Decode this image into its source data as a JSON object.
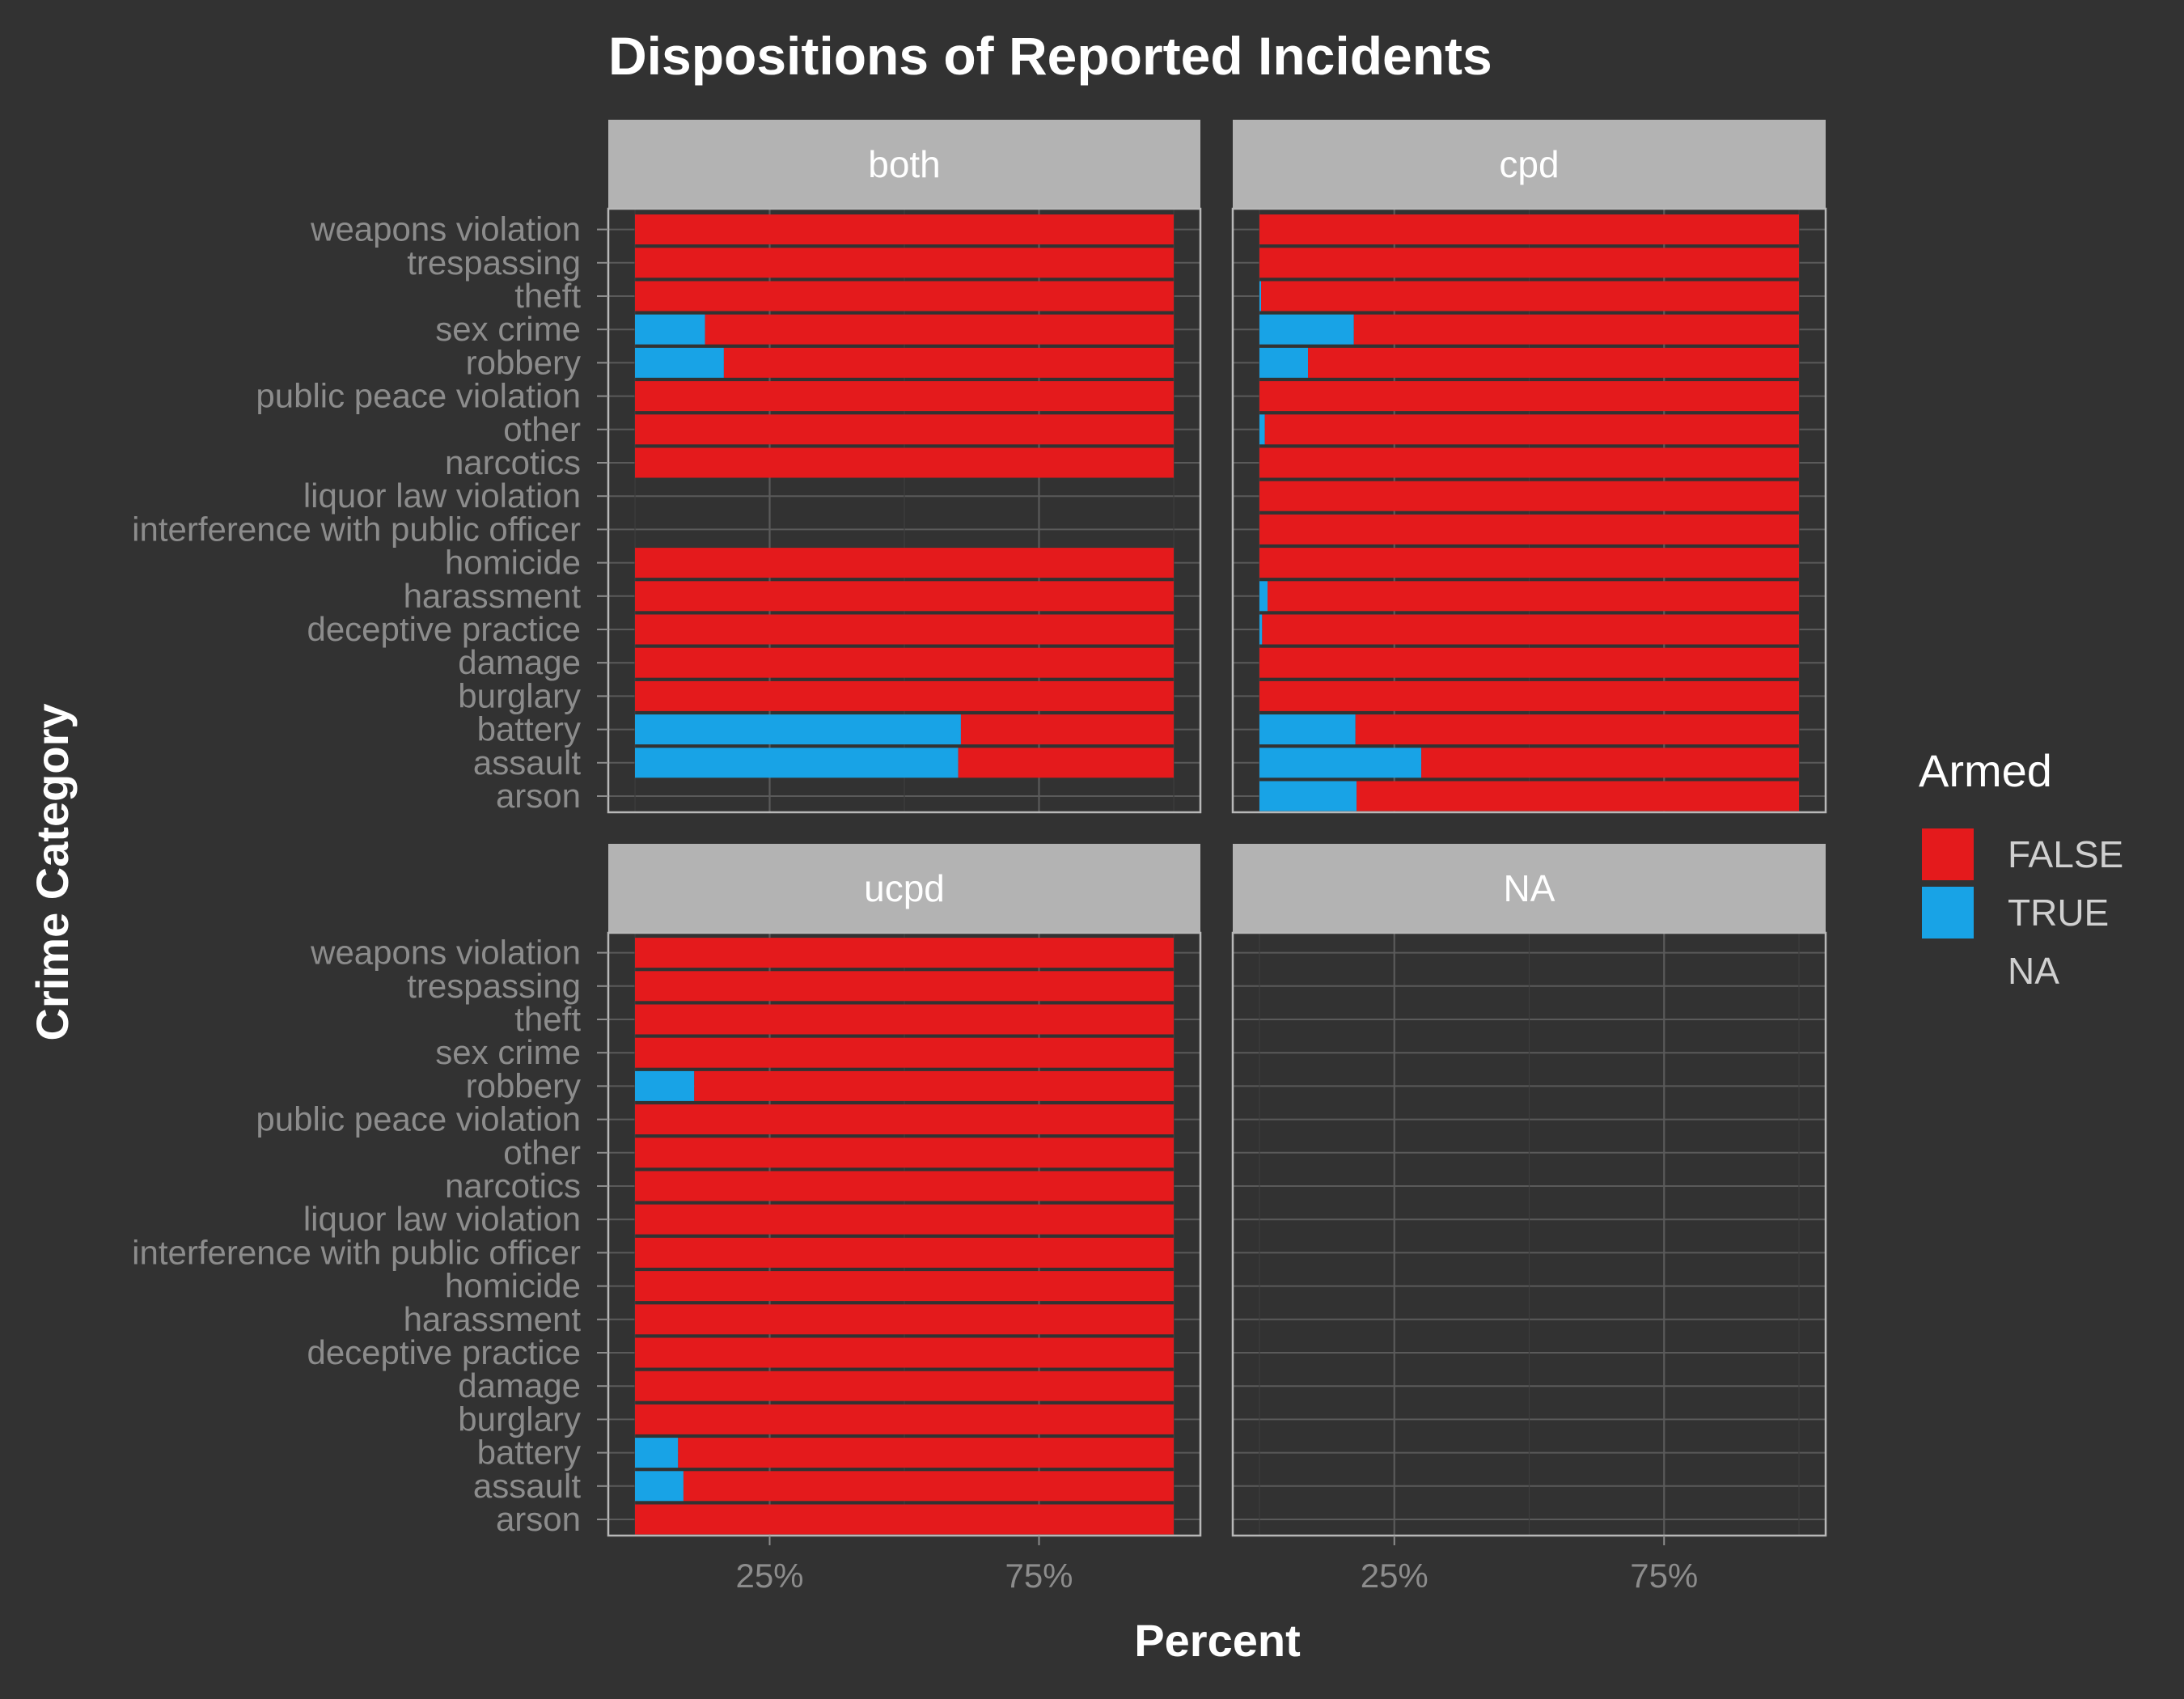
{
  "chart_data": {
    "type": "bar",
    "orientation": "horizontal",
    "stacked": "fill",
    "title": "Dispositions of Reported Incidents",
    "xlabel": "Percent",
    "ylabel": "Crime Category",
    "xlim": [
      0,
      1
    ],
    "x_ticks": [
      0.25,
      0.75
    ],
    "x_tick_labels": [
      "25%",
      "75%"
    ],
    "grid": true,
    "legend": {
      "title": "Armed",
      "position": "right",
      "entries": [
        {
          "label": "FALSE",
          "color": "#e41a1c"
        },
        {
          "label": "TRUE",
          "color": "#18a3e6"
        },
        {
          "label": "NA",
          "color": ""
        }
      ]
    },
    "categories": [
      "arson",
      "assault",
      "battery",
      "burglary",
      "damage",
      "deceptive practice",
      "harassment",
      "homicide",
      "interference with public officer",
      "liquor law violation",
      "narcotics",
      "other",
      "public peace violation",
      "robbery",
      "sex crime",
      "theft",
      "trespassing",
      "weapons violation"
    ],
    "panels": [
      {
        "label": "both",
        "true_share": [
          null,
          0.6,
          0.605,
          0,
          0,
          0,
          0,
          0,
          null,
          null,
          0,
          0,
          0,
          0.165,
          0.13,
          0,
          0,
          0
        ]
      },
      {
        "label": "cpd",
        "true_share": [
          0.18,
          0.3,
          0.178,
          0,
          0,
          0.005,
          0.015,
          0,
          0,
          0,
          0,
          0.01,
          0,
          0.09,
          0.175,
          0.003,
          0,
          0
        ]
      },
      {
        "label": "ucpd",
        "true_share": [
          0,
          0.09,
          0.08,
          0,
          0,
          0,
          0,
          0,
          0,
          0,
          0,
          0,
          0,
          0.11,
          0,
          0,
          0,
          0
        ]
      },
      {
        "label": "NA",
        "true_share": [
          null,
          null,
          null,
          null,
          null,
          null,
          null,
          null,
          null,
          null,
          null,
          null,
          null,
          null,
          null,
          null,
          null,
          null
        ]
      }
    ]
  }
}
